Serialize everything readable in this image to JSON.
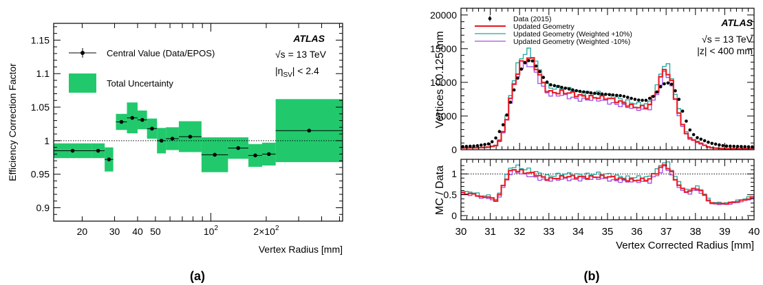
{
  "chart_data": [
    {
      "type": "errorbar",
      "panel_label": "(a)",
      "ylabel": "Efficiency Correction Factor",
      "xlabel": "Vertex Radius [mm]",
      "xscale": "log",
      "xlim": [
        14,
        520
      ],
      "ylim": [
        0.88,
        1.175
      ],
      "yticks": [
        "0.9",
        "0.95",
        "1",
        "1.05",
        "1.1",
        "1.15"
      ],
      "ytick_values": [
        0.9,
        0.95,
        1.0,
        1.05,
        1.1,
        1.15
      ],
      "xtick_labels": [
        {
          "value": 20,
          "label": "20"
        },
        {
          "value": 30,
          "label": "30"
        },
        {
          "value": 40,
          "label": "40"
        },
        {
          "value": 50,
          "label": "50"
        },
        {
          "value": 100,
          "label": "10",
          "sup": "2"
        },
        {
          "value": 200,
          "label": "2×10",
          "sup": "2"
        }
      ],
      "reference_line": 1.0,
      "experiment": "ATLAS",
      "energy_label": "√s = 13 TeV",
      "eta_label": "|η",
      "eta_sub": "SV",
      "eta_value": "| < 2.4",
      "legend": {
        "central": "Central Value (Data/EPOS)",
        "uncertainty": "Total Uncertainty"
      },
      "colors": {
        "band": "#21c96c",
        "marker": "#000000"
      },
      "points": [
        {
          "xlo": 14,
          "xhi": 22.5,
          "y": 0.985,
          "ulo": 0.974,
          "uhi": 0.996
        },
        {
          "xlo": 22.5,
          "xhi": 26.5,
          "y": 0.985,
          "ulo": 0.974,
          "uhi": 0.996
        },
        {
          "xlo": 26.5,
          "xhi": 29.5,
          "y": 0.972,
          "ulo": 0.954,
          "uhi": 0.99
        },
        {
          "xlo": 30.5,
          "xhi": 35,
          "y": 1.028,
          "ulo": 1.016,
          "uhi": 1.04
        },
        {
          "xlo": 35,
          "xhi": 40,
          "y": 1.034,
          "ulo": 1.011,
          "uhi": 1.057
        },
        {
          "xlo": 40,
          "xhi": 45,
          "y": 1.031,
          "ulo": 1.017,
          "uhi": 1.045
        },
        {
          "xlo": 45,
          "xhi": 51,
          "y": 1.018,
          "ulo": 1.003,
          "uhi": 1.033
        },
        {
          "xlo": 51,
          "xhi": 57,
          "y": 1.0,
          "ulo": 0.981,
          "uhi": 1.019
        },
        {
          "xlo": 57,
          "xhi": 67,
          "y": 1.003,
          "ulo": 0.986,
          "uhi": 1.02
        },
        {
          "xlo": 67,
          "xhi": 89,
          "y": 1.006,
          "ulo": 0.983,
          "uhi": 1.029
        },
        {
          "xlo": 89,
          "xhi": 124,
          "y": 0.979,
          "ulo": 0.953,
          "uhi": 1.005
        },
        {
          "xlo": 124,
          "xhi": 160,
          "y": 0.989,
          "ulo": 0.973,
          "uhi": 1.005
        },
        {
          "xlo": 160,
          "xhi": 190,
          "y": 0.978,
          "ulo": 0.961,
          "uhi": 0.995
        },
        {
          "xlo": 190,
          "xhi": 225,
          "y": 0.98,
          "ulo": 0.963,
          "uhi": 0.997
        },
        {
          "xlo": 225,
          "xhi": 520,
          "y": 1.015,
          "ulo": 0.968,
          "uhi": 1.062
        }
      ]
    },
    {
      "type": "histogram",
      "panel_label": "(b)",
      "ylabel": "Vertices / 0.125 mm",
      "xlabel": "Vertex Corrected Radius [mm]",
      "ratio_ylabel": "MC / Data",
      "xlim": [
        30,
        40
      ],
      "ylim": [
        0,
        21000
      ],
      "ratio_ylim": [
        -0.1,
        1.35
      ],
      "xticks": [
        "30",
        "31",
        "32",
        "33",
        "34",
        "35",
        "36",
        "37",
        "38",
        "39",
        "40"
      ],
      "yticks": [
        "0",
        "5000",
        "10000",
        "15000",
        "20000"
      ],
      "ytick_values": [
        0,
        5000,
        10000,
        15000,
        20000
      ],
      "ratio_yticks": [
        "0",
        "0.5",
        "1"
      ],
      "ratio_ytick_values": [
        0,
        0.5,
        1
      ],
      "experiment": "ATLAS",
      "energy_label": "√s = 13 TeV",
      "z_label": "|z| < 400 mm",
      "legend": [
        {
          "name": "Data (2015)",
          "kind": "marker",
          "color": "#000000"
        },
        {
          "name": "Updated Geometry",
          "kind": "line",
          "color": "#e8202a",
          "scale": 1.0,
          "width": 2.2
        },
        {
          "name": "Updated Geometry (Weighted +10%)",
          "kind": "line",
          "color": "#1fa59c",
          "scale": 1.07,
          "width": 1.3
        },
        {
          "name": "Updated Geometry (Weighted -10%)",
          "kind": "line",
          "color": "#9b4dea",
          "scale": 0.94,
          "width": 1.3
        }
      ],
      "data_profile": [
        [
          30.0,
          450
        ],
        [
          30.5,
          550
        ],
        [
          31.0,
          900
        ],
        [
          31.2,
          1800
        ],
        [
          31.5,
          4200
        ],
        [
          31.75,
          8000
        ],
        [
          32.0,
          11500
        ],
        [
          32.2,
          13000
        ],
        [
          32.4,
          13400
        ],
        [
          32.6,
          12200
        ],
        [
          32.8,
          10800
        ],
        [
          33.0,
          9700
        ],
        [
          33.5,
          9200
        ],
        [
          34.0,
          8700
        ],
        [
          34.5,
          8400
        ],
        [
          35.0,
          8200
        ],
        [
          35.5,
          8000
        ],
        [
          36.0,
          7400
        ],
        [
          36.3,
          7300
        ],
        [
          36.6,
          8000
        ],
        [
          36.8,
          9300
        ],
        [
          37.0,
          10000
        ],
        [
          37.2,
          9700
        ],
        [
          37.4,
          8000
        ],
        [
          37.6,
          5200
        ],
        [
          37.8,
          3000
        ],
        [
          38.0,
          1900
        ],
        [
          38.5,
          1000
        ],
        [
          39.0,
          550
        ],
        [
          39.5,
          480
        ],
        [
          40.0,
          400
        ]
      ],
      "mc_profile": [
        [
          30.0,
          250
        ],
        [
          30.7,
          300
        ],
        [
          31.0,
          400
        ],
        [
          31.25,
          700
        ],
        [
          31.5,
          3300
        ],
        [
          31.75,
          9000
        ],
        [
          32.0,
          12400
        ],
        [
          32.3,
          13500
        ],
        [
          32.5,
          12800
        ],
        [
          32.8,
          10000
        ],
        [
          33.0,
          8700
        ],
        [
          33.5,
          8400
        ],
        [
          34.0,
          8100
        ],
        [
          34.5,
          7900
        ],
        [
          35.0,
          7500
        ],
        [
          35.5,
          7100
        ],
        [
          36.0,
          6300
        ],
        [
          36.4,
          6200
        ],
        [
          36.7,
          9000
        ],
        [
          36.9,
          12000
        ],
        [
          37.0,
          12300
        ],
        [
          37.15,
          10800
        ],
        [
          37.4,
          6000
        ],
        [
          37.6,
          3000
        ],
        [
          37.8,
          1700
        ],
        [
          38.0,
          1300
        ],
        [
          38.5,
          300
        ],
        [
          39.0,
          150
        ],
        [
          39.5,
          170
        ],
        [
          40.0,
          180
        ]
      ]
    }
  ]
}
